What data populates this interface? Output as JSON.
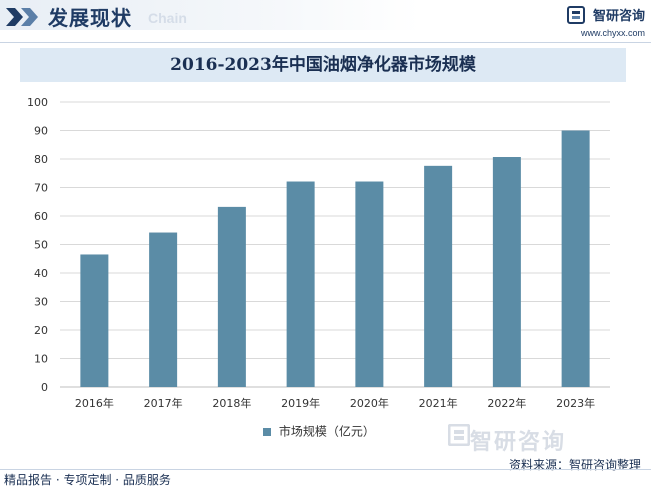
{
  "header": {
    "section_title": "发展现状",
    "section_subtitle": "Chain",
    "brand_name": "智研咨询",
    "brand_url": "www.chyxx.com"
  },
  "chart_data": {
    "type": "bar",
    "title": "2016-2023年中国油烟净化器市场规模",
    "categories": [
      "2016年",
      "2017年",
      "2018年",
      "2019年",
      "2020年",
      "2021年",
      "2022年",
      "2023年"
    ],
    "series": [
      {
        "name": "市场规模（亿元）",
        "values": [
          46.5,
          54.2,
          63.2,
          72.1,
          72.1,
          77.6,
          80.7,
          90.0
        ]
      }
    ],
    "ylim": [
      0,
      100
    ],
    "yticks": [
      0,
      10,
      20,
      30,
      40,
      50,
      60,
      70,
      80,
      90,
      100
    ],
    "grid": true,
    "legend_position": "bottom",
    "colors": {
      "bar": "#5b8ca6",
      "grid": "#d9d9d9"
    }
  },
  "watermark": "智研咨询",
  "footer": {
    "source": "资料来源：智研咨询整理",
    "tagline": "精品报告 · 专项定制 · 品质服务"
  }
}
